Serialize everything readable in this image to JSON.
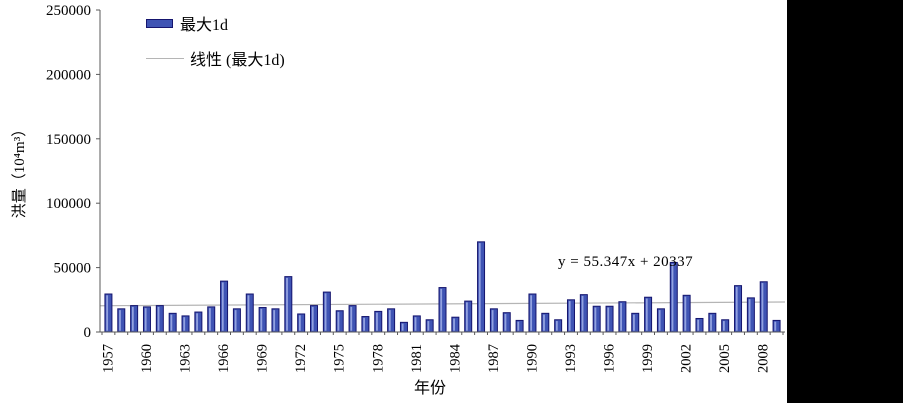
{
  "chart_data": {
    "type": "bar",
    "title": "",
    "xlabel": "年份",
    "ylabel": "洪量（10⁴m³）",
    "ylim": [
      0,
      250000
    ],
    "y_ticks": [
      0,
      50000,
      100000,
      150000,
      200000,
      250000
    ],
    "grid": "off",
    "legend_position": "top-left-inside",
    "x_tick_labels": [
      "1957",
      "1960",
      "1963",
      "1966",
      "1969",
      "1972",
      "1975",
      "1978",
      "1981",
      "1984",
      "1987",
      "1990",
      "1993",
      "1996",
      "1999",
      "2002",
      "2005",
      "2008"
    ],
    "years": [
      1957,
      1958,
      1959,
      1960,
      1961,
      1962,
      1963,
      1964,
      1965,
      1966,
      1967,
      1968,
      1969,
      1970,
      1971,
      1972,
      1973,
      1974,
      1975,
      1976,
      1977,
      1978,
      1979,
      1980,
      1981,
      1982,
      1983,
      1984,
      1985,
      1986,
      1987,
      1988,
      1989,
      1990,
      1991,
      1992,
      1993,
      1994,
      1995,
      1996,
      1997,
      1998,
      1999,
      2000,
      2001,
      2002,
      2003,
      2004,
      2005,
      2006,
      2007,
      2008,
      2009
    ],
    "series": [
      {
        "name": "最大1d",
        "values": [
          29500,
          18000,
          20500,
          19500,
          20500,
          14500,
          12500,
          15500,
          19500,
          39500,
          18000,
          29500,
          19000,
          18000,
          43000,
          14000,
          20500,
          31000,
          16500,
          20500,
          12000,
          16000,
          18000,
          7500,
          12500,
          9500,
          34500,
          11500,
          24000,
          70000,
          18000,
          15000,
          9000,
          29500,
          14500,
          9500,
          25000,
          29000,
          20000,
          20000,
          23500,
          14500,
          27000,
          18000,
          54000,
          28500,
          10500,
          14500,
          9500,
          36000,
          26500,
          39000,
          9000
        ]
      }
    ],
    "trend": {
      "label": "线性 (最大1d)",
      "equation": "y = 55.347x + 20337",
      "slope": 55.347,
      "intercept": 20337
    },
    "colors": {
      "bar_fill": "#3f54b4",
      "bar_highlight": "#93a2e0",
      "bar_border": "#15156e",
      "trend_line": "#b5b5b5",
      "axis": "#595959",
      "text": "#000000",
      "background": "#ffffff",
      "side_band": "#000000"
    }
  }
}
